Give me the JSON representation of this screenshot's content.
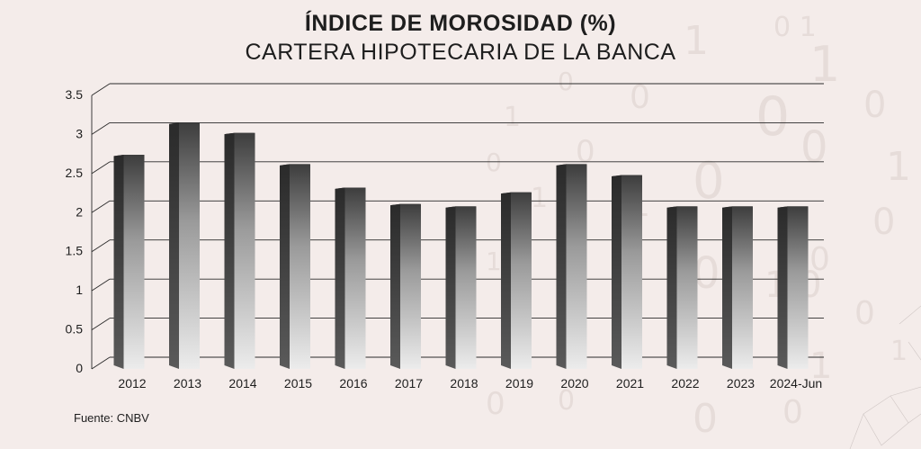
{
  "chart_data": {
    "type": "bar",
    "title": "ÍNDICE DE MOROSIDAD (%)",
    "subtitle": "CARTERA HIPOTECARIA DE LA BANCA",
    "categories": [
      "2012",
      "2013",
      "2014",
      "2015",
      "2016",
      "2017",
      "2018",
      "2019",
      "2020",
      "2021",
      "2022",
      "2023",
      "2024-Jun"
    ],
    "values": [
      2.74,
      3.15,
      3.02,
      2.62,
      2.32,
      2.11,
      2.08,
      2.26,
      2.62,
      2.48,
      2.08,
      2.08,
      2.08
    ],
    "yticks": [
      "0",
      "0.5",
      "1",
      "1.5",
      "2",
      "2.5",
      "3",
      "3.5"
    ],
    "ylim": [
      0,
      3.5
    ],
    "grid": true,
    "legend": "none",
    "style": "3d-bar",
    "colors": {
      "bar_top": "#3a3a3a",
      "bar_bottom": "#e8e8e8",
      "grid": "#2a2a2a"
    }
  },
  "source": "Fuente: CNBV"
}
